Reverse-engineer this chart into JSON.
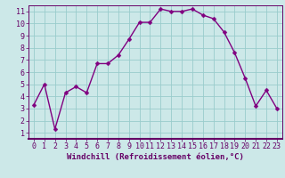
{
  "x": [
    0,
    1,
    2,
    3,
    4,
    5,
    6,
    7,
    8,
    9,
    10,
    11,
    12,
    13,
    14,
    15,
    16,
    17,
    18,
    19,
    20,
    21,
    22,
    23
  ],
  "y": [
    3.3,
    5.0,
    1.3,
    4.3,
    4.8,
    4.3,
    6.7,
    6.7,
    7.4,
    8.7,
    10.1,
    10.1,
    11.2,
    11.0,
    11.0,
    11.2,
    10.7,
    10.4,
    9.3,
    7.6,
    5.5,
    3.2,
    4.5,
    3.0
  ],
  "line_color": "#800080",
  "marker_color": "#800080",
  "bg_color": "#cce8e8",
  "grid_color": "#99cccc",
  "xlabel": "Windchill (Refroidissement éolien,°C)",
  "xlim": [
    -0.5,
    23.5
  ],
  "ylim": [
    0.5,
    11.5
  ],
  "xticks": [
    0,
    1,
    2,
    3,
    4,
    5,
    6,
    7,
    8,
    9,
    10,
    11,
    12,
    13,
    14,
    15,
    16,
    17,
    18,
    19,
    20,
    21,
    22,
    23
  ],
  "yticks": [
    1,
    2,
    3,
    4,
    5,
    6,
    7,
    8,
    9,
    10,
    11
  ],
  "xlabel_fontsize": 6.5,
  "tick_fontsize": 6.0,
  "line_width": 1.0,
  "marker_size": 2.5,
  "text_color": "#660066"
}
